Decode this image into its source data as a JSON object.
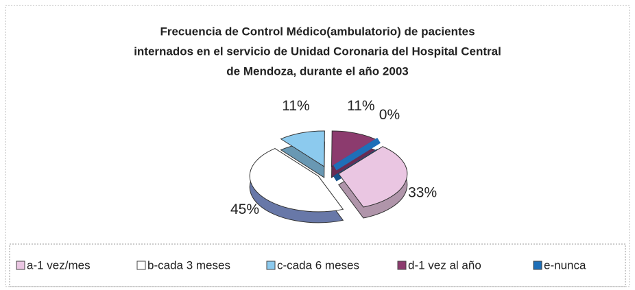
{
  "chart_data": {
    "type": "pie",
    "title": [
      "Frecuencia de Control Médico(ambulatorio) de pacientes",
      "internados en el servicio de Unidad Coronaria del Hospital Central",
      "de Mendoza, durante el año 2003"
    ],
    "categories": [
      "a-1 vez/mes",
      "b-cada 3 meses",
      "c-cada 6 meses",
      "d-1 vez al año",
      "e-nunca"
    ],
    "values": [
      33,
      45,
      11,
      11,
      0
    ],
    "value_labels": [
      "33%",
      "45%",
      "11%",
      "11%",
      "0%"
    ],
    "colors": [
      "#eac6e2",
      "#ffffff",
      "#8ccaee",
      "#8c3b6e",
      "#1e6fb8"
    ],
    "legend": "bottom"
  }
}
